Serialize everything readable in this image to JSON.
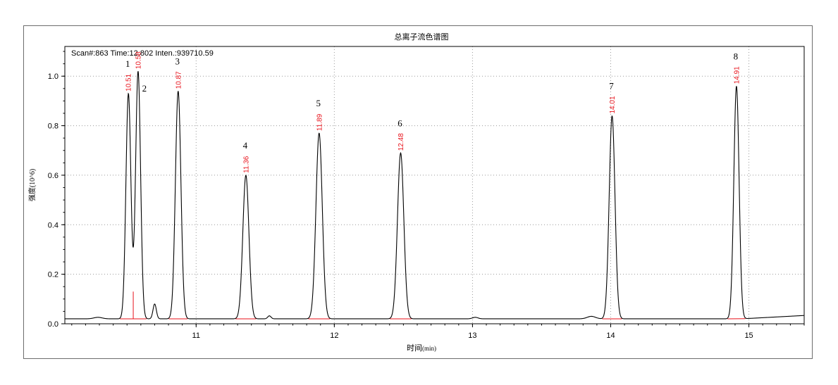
{
  "chart_data": {
    "type": "line",
    "title": "总离子流色谱图",
    "info_line": "Scan#:863  Time:12.802  Inten.:939710.59",
    "xlabel_main": "时间",
    "xlabel_unit": "(min)",
    "ylabel": "强度(10^6)",
    "xlim": [
      10.05,
      15.4
    ],
    "ylim": [
      0.0,
      1.12
    ],
    "x_ticks": [
      11,
      12,
      13,
      14,
      15
    ],
    "x_tick_labels": [
      "11",
      "12",
      "13",
      "14",
      "15"
    ],
    "y_ticks": [
      0.0,
      0.2,
      0.4,
      0.6,
      0.8,
      1.0
    ],
    "y_tick_labels": [
      "0.0",
      "0.2",
      "0.4",
      "0.6",
      "0.8",
      "1.0"
    ],
    "grid": true,
    "baseline": 0.02,
    "peaks": [
      {
        "label": "1",
        "rt": 10.51,
        "rt_label": "10.51",
        "height": 0.93,
        "width": 0.018
      },
      {
        "label": "2",
        "rt": 10.58,
        "rt_label": "10.58",
        "height": 1.02,
        "width": 0.018
      },
      {
        "label": "3",
        "rt": 10.87,
        "rt_label": "10.87",
        "height": 0.94,
        "width": 0.02
      },
      {
        "label": "4",
        "rt": 11.36,
        "rt_label": "11.36",
        "height": 0.6,
        "width": 0.022
      },
      {
        "label": "5",
        "rt": 11.89,
        "rt_label": "11.89",
        "height": 0.77,
        "width": 0.023
      },
      {
        "label": "6",
        "rt": 12.48,
        "rt_label": "12.48",
        "height": 0.69,
        "width": 0.023
      },
      {
        "label": "7",
        "rt": 14.01,
        "rt_label": "14.01",
        "height": 0.84,
        "width": 0.021
      },
      {
        "label": "8",
        "rt": 14.91,
        "rt_label": "14.91",
        "height": 0.96,
        "width": 0.019
      }
    ],
    "minor_peaks": [
      {
        "rt": 10.7,
        "height": 0.08,
        "width": 0.012
      },
      {
        "rt": 10.29,
        "height": 0.026,
        "width": 0.03
      },
      {
        "rt": 11.53,
        "height": 0.032,
        "width": 0.012
      },
      {
        "rt": 13.02,
        "height": 0.026,
        "width": 0.02
      },
      {
        "rt": 13.86,
        "height": 0.03,
        "width": 0.03
      }
    ],
    "colors": {
      "trace": "#000000",
      "rt_label": "#e8111a",
      "integration_baseline": "#e8111a",
      "grid": "#9a9a9a",
      "axis": "#000000"
    }
  }
}
